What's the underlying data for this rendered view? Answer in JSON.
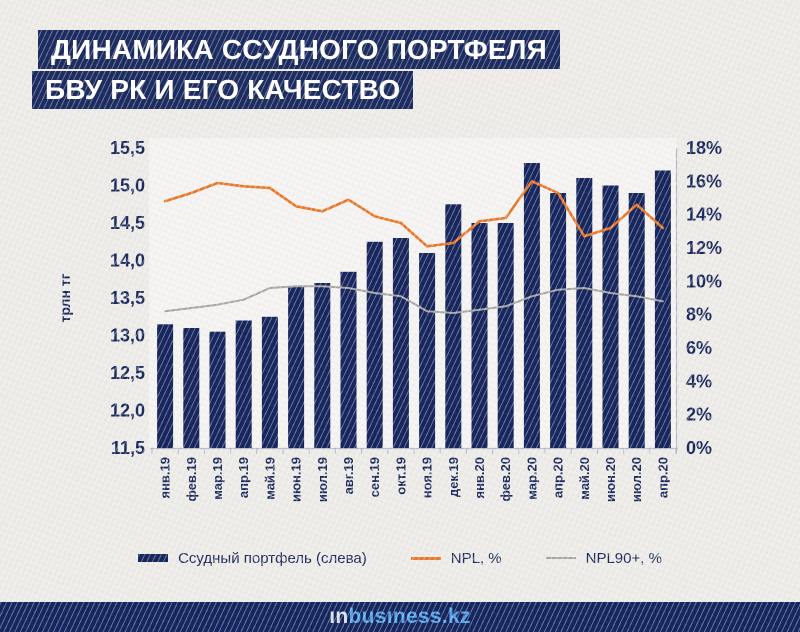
{
  "header": {
    "title_line1": "ДИНАМИКА ССУДНОГО ПОРТФЕЛЯ",
    "title_line2": "БВУ РК И ЕГО КАЧЕСТВО"
  },
  "chart_data": {
    "type": "combo-bar-line",
    "categories": [
      "янв.19",
      "фев.19",
      "мар.19",
      "апр.19",
      "май.19",
      "июн.19",
      "июл.19",
      "авг.19",
      "сен.19",
      "окт.19",
      "ноя.19",
      "дек.19",
      "янв.20",
      "фев.20",
      "мар.20",
      "апр.20",
      "май.20",
      "июн.20",
      "июл.20",
      "апр.20"
    ],
    "series": [
      {
        "name": "Ссудный портфель (слева)",
        "type": "bar",
        "axis": "left",
        "color": "#17265e",
        "values": [
          13.15,
          13.1,
          13.05,
          13.2,
          13.25,
          13.65,
          13.7,
          13.85,
          14.25,
          14.3,
          14.1,
          14.75,
          14.5,
          14.5,
          15.3,
          14.9,
          15.1,
          15.0,
          14.9,
          15.2
        ]
      },
      {
        "name": "NPL, %",
        "type": "line",
        "axis": "right",
        "color": "#e8782a",
        "values": [
          14.8,
          15.3,
          15.9,
          15.7,
          15.6,
          14.5,
          14.2,
          14.9,
          13.9,
          13.5,
          12.1,
          12.3,
          13.6,
          13.8,
          16.0,
          15.3,
          12.7,
          13.2,
          14.6,
          13.2
        ]
      },
      {
        "name": "NPL90+, %",
        "type": "line",
        "axis": "right",
        "color": "#a6a6a6",
        "values": [
          8.2,
          8.4,
          8.6,
          8.9,
          9.6,
          9.7,
          9.7,
          9.6,
          9.3,
          9.1,
          8.2,
          8.1,
          8.3,
          8.5,
          9.1,
          9.5,
          9.6,
          9.3,
          9.1,
          8.8
        ]
      }
    ],
    "left_axis": {
      "label": "трлн тг",
      "min": 11.5,
      "max": 15.5,
      "step": 0.5,
      "tick_labels": [
        "15,5",
        "15,0",
        "14,5",
        "14,0",
        "13,5",
        "13,0",
        "12,5",
        "12,0",
        "11,5"
      ]
    },
    "right_axis": {
      "min": 0,
      "max": 18,
      "step": 2,
      "tick_labels": [
        "18%",
        "16%",
        "14%",
        "12%",
        "10%",
        "8%",
        "6%",
        "4%",
        "2%",
        "0%"
      ]
    },
    "grid": false,
    "legend_position": "bottom",
    "text_color": "#1b2a5e",
    "axis_line_color": "#b4bbc8"
  },
  "legend": {
    "bar_label": "Ссудный портфель (слева)",
    "npl_label": "NPL, %",
    "npl90_label": "NPL90+, %"
  },
  "footer": {
    "logo_prefix": "ın",
    "logo_suffix": "busıness.kz"
  }
}
